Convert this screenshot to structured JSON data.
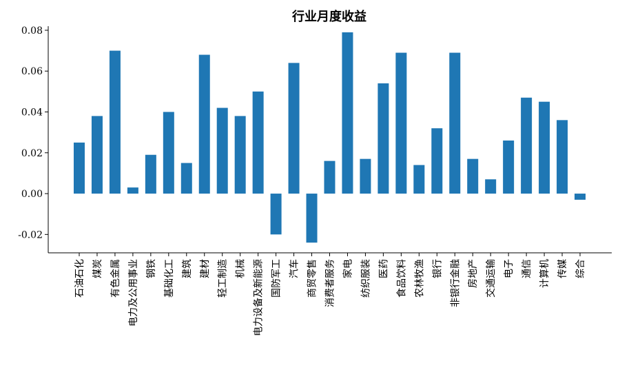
{
  "chart_data": {
    "type": "bar",
    "title": "行业月度收益",
    "xlabel": "",
    "ylabel": "",
    "ylim": [
      -0.029,
      0.082
    ],
    "y_ticks": [
      "-0.02",
      "0.00",
      "0.02",
      "0.04",
      "0.06",
      "0.08"
    ],
    "bar_color": "#1f77b4",
    "grid": false,
    "categories": [
      "石油石化",
      "煤炭",
      "有色金属",
      "电力及公用事业",
      "钢铁",
      "基础化工",
      "建筑",
      "建材",
      "轻工制造",
      "机械",
      "电力设备及新能源",
      "国防军工",
      "汽车",
      "商贸零售",
      "消费者服务",
      "家电",
      "纺织服装",
      "医药",
      "食品饮料",
      "农林牧渔",
      "银行",
      "非银行金融",
      "房地产",
      "交通运输",
      "电子",
      "通信",
      "计算机",
      "传媒",
      "综合"
    ],
    "values": [
      0.025,
      0.038,
      0.07,
      0.003,
      0.019,
      0.04,
      0.015,
      0.068,
      0.042,
      0.038,
      0.05,
      -0.02,
      0.064,
      -0.024,
      0.016,
      0.079,
      0.017,
      0.054,
      0.069,
      0.014,
      0.032,
      0.069,
      0.017,
      0.007,
      0.026,
      0.047,
      0.045,
      0.036,
      -0.003
    ]
  }
}
